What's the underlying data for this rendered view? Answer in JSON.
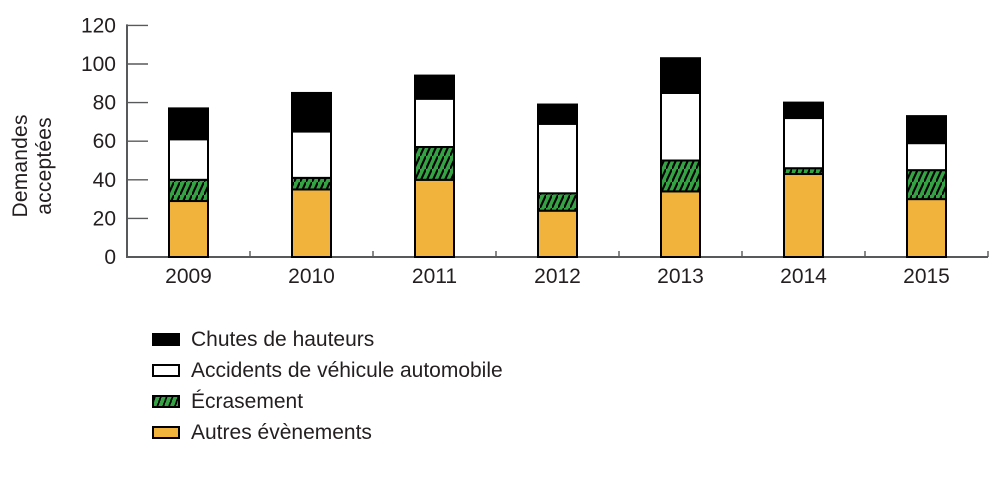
{
  "y_axis": {
    "title_lines": [
      "Demandes",
      "acceptées"
    ]
  },
  "chart_data": {
    "type": "bar",
    "stacked": true,
    "title": "",
    "xlabel": "",
    "ylabel": "Demandes acceptées",
    "categories": [
      "2009",
      "2010",
      "2011",
      "2012",
      "2013",
      "2014",
      "2015"
    ],
    "series": [
      {
        "name": "Chutes de hauteurs",
        "color": "#000000",
        "hatch": false,
        "values": [
          16,
          20,
          12,
          10,
          18,
          8,
          14
        ]
      },
      {
        "name": "Accidents de véhicule automobile",
        "color": "#FFFFFF",
        "hatch": false,
        "values": [
          21,
          24,
          25,
          36,
          35,
          26,
          14
        ]
      },
      {
        "name": "Écrasement",
        "color": "#35A244",
        "hatch": true,
        "values": [
          11,
          6,
          17,
          9,
          16,
          3,
          15
        ]
      },
      {
        "name": "Autres évènements",
        "color": "#F2B33D",
        "hatch": false,
        "values": [
          29,
          35,
          40,
          24,
          34,
          43,
          30
        ]
      }
    ],
    "stack_order": "last-series-at-bottom",
    "totals": [
      77,
      85,
      94,
      79,
      103,
      80,
      73
    ],
    "ylim": [
      0,
      120
    ],
    "yticks": [
      0,
      20,
      40,
      60,
      80,
      100,
      120
    ],
    "grid": false,
    "legend_position": "bottom-left"
  },
  "colors": {
    "axis": "#58595B",
    "text": "#231F20",
    "bar_stroke": "#000000"
  }
}
